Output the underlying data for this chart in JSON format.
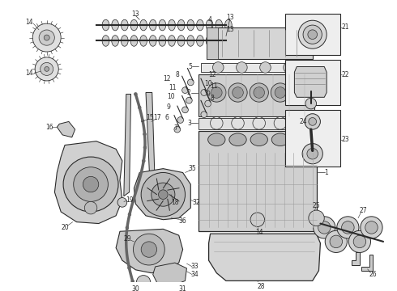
{
  "bg_color": "#ffffff",
  "line_color": "#2a2a2a",
  "fig_width": 4.9,
  "fig_height": 3.6,
  "dpi": 100,
  "gray_fill": "#d8d8d8",
  "gray_mid": "#b8b8b8",
  "gray_dark": "#888888",
  "gray_light": "#eeeeee",
  "label_size": 5.5,
  "inset_bg": "#f5f5f5"
}
